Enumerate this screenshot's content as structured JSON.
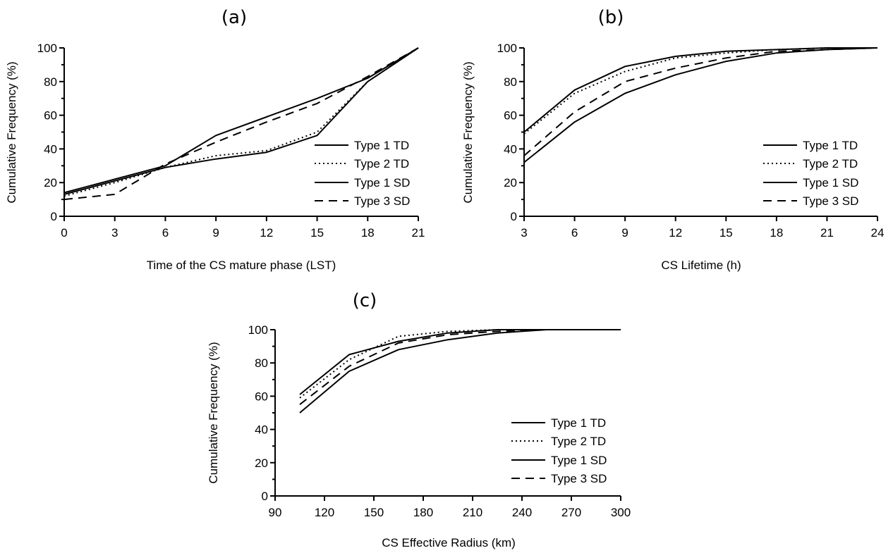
{
  "chart_data": [
    {
      "type": "line",
      "panel": "(a)",
      "xlabel": "Time of the CS mature phase (LST)",
      "ylabel": "Cumulative Frequency (%)",
      "xlim": [
        0,
        21
      ],
      "ylim": [
        0,
        100
      ],
      "x_ticks": [
        0,
        3,
        6,
        9,
        12,
        15,
        18,
        21
      ],
      "y_ticks": [
        0,
        20,
        40,
        60,
        80,
        100
      ],
      "legend_position": "center-right",
      "grid": false,
      "series": [
        {
          "name": "Type 1 TD",
          "style": "solid",
          "x": [
            0,
            3,
            6,
            9,
            12,
            15,
            18,
            21
          ],
          "values": [
            14,
            22,
            30,
            48,
            59,
            70,
            82,
            100
          ]
        },
        {
          "name": "Type 2 TD",
          "style": "dotted",
          "x": [
            0,
            3,
            6,
            9,
            12,
            15,
            18,
            21
          ],
          "values": [
            12,
            20,
            29,
            36,
            39,
            50,
            80,
            100
          ]
        },
        {
          "name": "Type 1 SD",
          "style": "solid",
          "x": [
            0,
            3,
            6,
            9,
            12,
            15,
            18,
            21
          ],
          "values": [
            13,
            21,
            29,
            34,
            38,
            48,
            80,
            100
          ]
        },
        {
          "name": "Type 3 SD",
          "style": "dashed",
          "x": [
            0,
            3,
            6,
            9,
            12,
            15,
            18,
            21
          ],
          "values": [
            10,
            13,
            31,
            44,
            56,
            67,
            83,
            100
          ]
        }
      ]
    },
    {
      "type": "line",
      "panel": "(b)",
      "xlabel": "CS Lifetime (h)",
      "ylabel": "Cumulative Frequency (%)",
      "xlim": [
        3,
        24
      ],
      "ylim": [
        0,
        100
      ],
      "x_ticks": [
        3,
        6,
        9,
        12,
        15,
        18,
        21,
        24
      ],
      "y_ticks": [
        0,
        20,
        40,
        60,
        80,
        100
      ],
      "legend_position": "bottom-right",
      "grid": false,
      "series": [
        {
          "name": "Type 1 TD",
          "style": "solid",
          "x": [
            3,
            6,
            9,
            12,
            15,
            18,
            21,
            24
          ],
          "values": [
            50,
            75,
            89,
            95,
            98,
            99,
            100,
            100
          ]
        },
        {
          "name": "Type 2 TD",
          "style": "dotted",
          "x": [
            3,
            6,
            9,
            12,
            15,
            18,
            21,
            24
          ],
          "values": [
            49,
            73,
            86,
            94,
            97,
            99,
            100,
            100
          ]
        },
        {
          "name": "Type 1 SD",
          "style": "solid",
          "x": [
            3,
            6,
            9,
            12,
            15,
            18,
            21,
            24
          ],
          "values": [
            32,
            56,
            73,
            84,
            92,
            97,
            99,
            100
          ]
        },
        {
          "name": "Type 3 SD",
          "style": "dashed",
          "x": [
            3,
            6,
            9,
            12,
            15,
            18,
            21,
            24
          ],
          "values": [
            36,
            62,
            80,
            88,
            94,
            98,
            99,
            100
          ]
        }
      ]
    },
    {
      "type": "line",
      "panel": "(c)",
      "xlabel": "CS Effective Radius (km)",
      "ylabel": "Cumulative Frequency (%)",
      "xlim": [
        90,
        300
      ],
      "ylim": [
        0,
        100
      ],
      "x_ticks": [
        90,
        120,
        150,
        180,
        210,
        240,
        270,
        300
      ],
      "y_ticks": [
        0,
        20,
        40,
        60,
        80,
        100
      ],
      "legend_position": "bottom-right",
      "grid": false,
      "series": [
        {
          "name": "Type 1 TD",
          "style": "solid",
          "x": [
            105,
            135,
            165,
            195,
            225,
            255,
            285,
            300
          ],
          "values": [
            61,
            85,
            93,
            98,
            100,
            100,
            100,
            100
          ]
        },
        {
          "name": "Type 2 TD",
          "style": "dotted",
          "x": [
            105,
            135,
            165,
            195,
            225,
            255,
            285,
            300
          ],
          "values": [
            59,
            82,
            96,
            99,
            100,
            100,
            100,
            100
          ]
        },
        {
          "name": "Type 1 SD",
          "style": "solid",
          "x": [
            105,
            135,
            165,
            195,
            225,
            255,
            285,
            300
          ],
          "values": [
            50,
            75,
            88,
            94,
            98,
            100,
            100,
            100
          ]
        },
        {
          "name": "Type 3 SD",
          "style": "dashed",
          "x": [
            105,
            135,
            165,
            195,
            225,
            255,
            285,
            300
          ],
          "values": [
            55,
            78,
            92,
            97,
            99,
            100,
            100,
            100
          ]
        }
      ]
    }
  ]
}
